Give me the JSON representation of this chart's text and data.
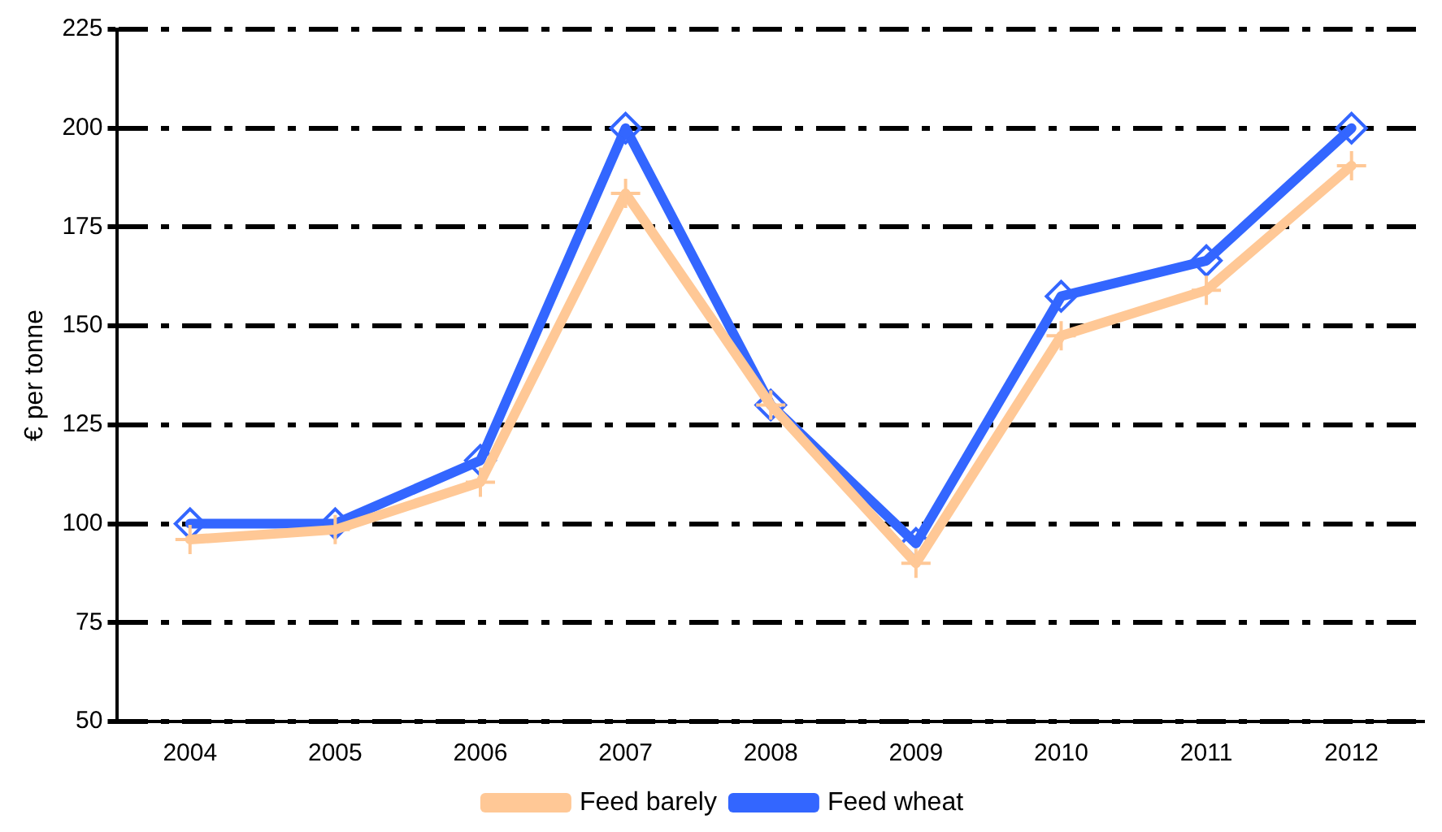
{
  "chart_data": {
    "type": "line",
    "ylabel": "€ per tonne",
    "categories": [
      "2004",
      "2005",
      "2006",
      "2007",
      "2008",
      "2009",
      "2010",
      "2011",
      "2012"
    ],
    "series": [
      {
        "name": "Feed barely",
        "color": "#ffc896",
        "marker": "cross",
        "values": [
          96,
          98.5,
          110.5,
          183.5,
          130,
          90,
          147.5,
          159,
          190.5
        ]
      },
      {
        "name": "Feed wheat",
        "color": "#3366ff",
        "marker": "diamond",
        "values": [
          100,
          100,
          116,
          200,
          130,
          95,
          157.5,
          166.5,
          200
        ]
      }
    ],
    "ylim": [
      50,
      225
    ],
    "yticks": [
      50,
      75,
      100,
      125,
      150,
      175,
      200,
      225
    ],
    "grid": "y",
    "legend": "bottom",
    "line_style": "solid"
  }
}
